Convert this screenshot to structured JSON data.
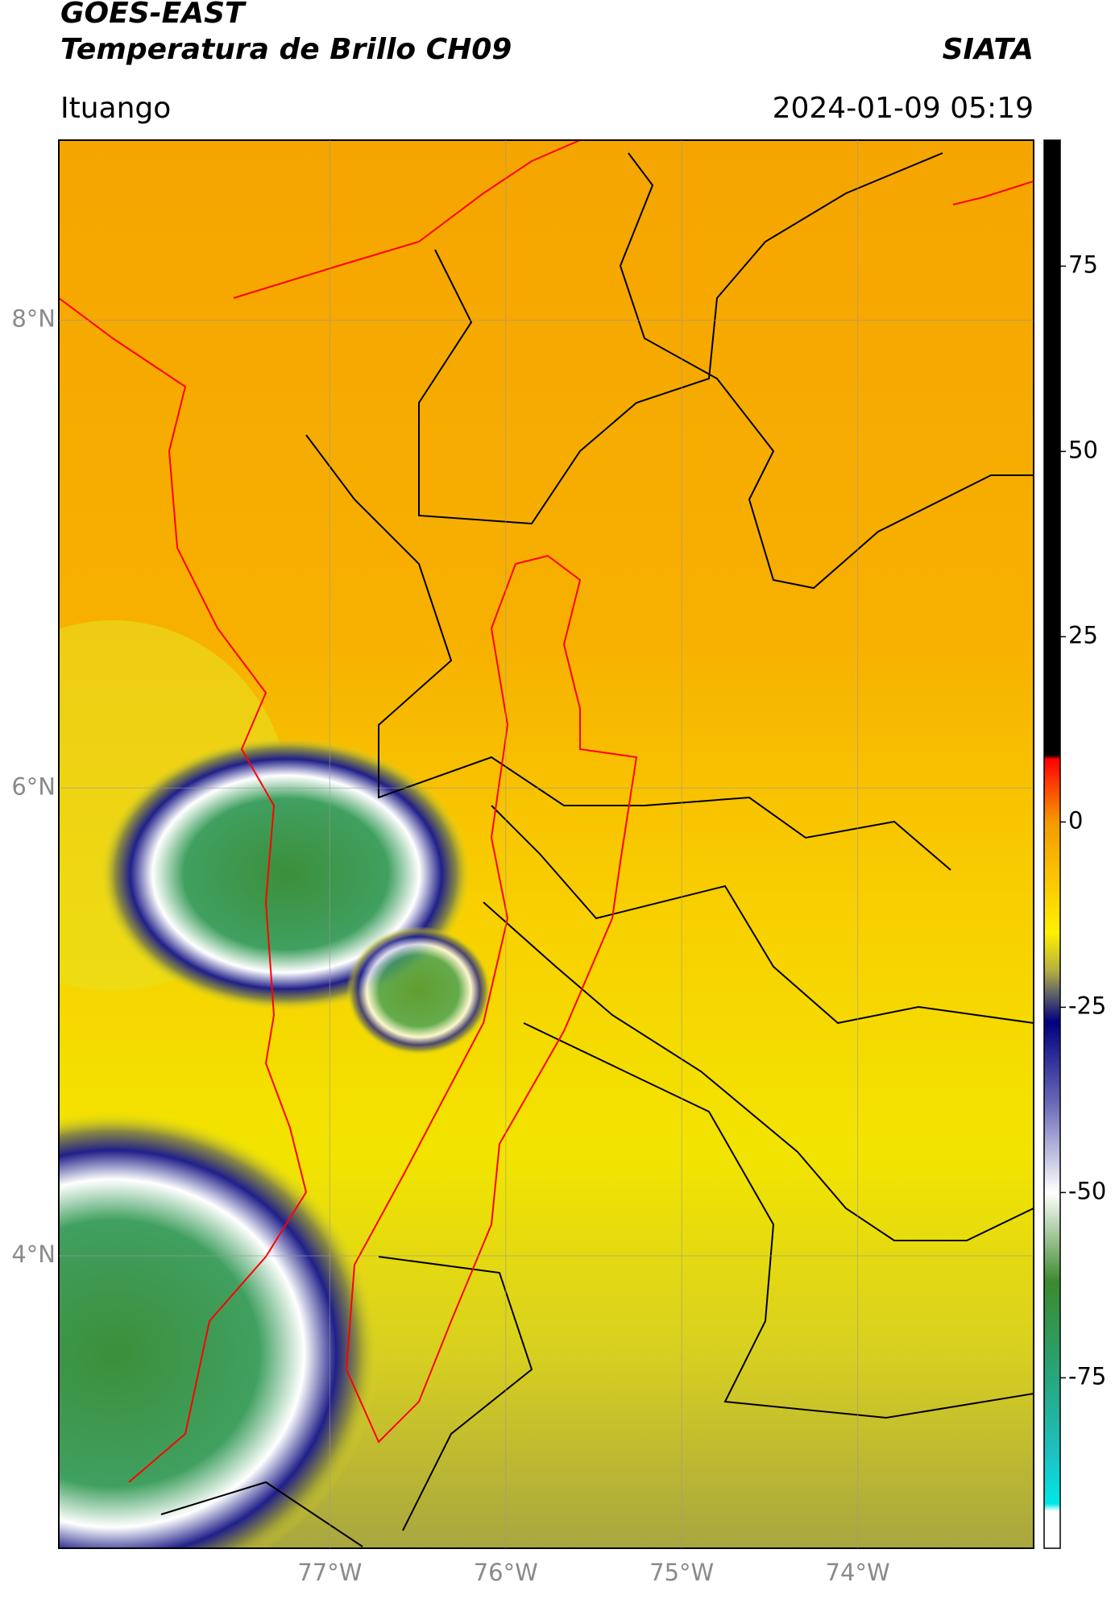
{
  "header": {
    "title": "GOES-EAST",
    "subtitle": "Temperatura de Brillo CH09",
    "source": "SIATA",
    "location": "Ituango",
    "datetime": "2024-01-09 05:19"
  },
  "map": {
    "lonlim": [
      -78.54,
      -73.0
    ],
    "latlim": [
      2.75,
      8.77
    ],
    "lat_ticks": [
      {
        "value": 8,
        "label": "8°N"
      },
      {
        "value": 6,
        "label": "6°N"
      },
      {
        "value": 4,
        "label": "4°N"
      }
    ],
    "lon_ticks": [
      {
        "value": -77,
        "label": "77°W"
      },
      {
        "value": -76,
        "label": "76°W"
      },
      {
        "value": -75,
        "label": "75°W"
      },
      {
        "value": -74,
        "label": "74°W"
      }
    ],
    "grid": true
  },
  "colorbar": {
    "lim": [
      -98,
      92
    ],
    "ticks": [
      75,
      50,
      25,
      0,
      -25,
      -50,
      -75
    ],
    "colormap": [
      {
        "value": 92,
        "color": "#000000"
      },
      {
        "value": 9,
        "color": "#000000"
      },
      {
        "value": 8.5,
        "color": "#ff0000"
      },
      {
        "value": 0,
        "color": "#f59a00"
      },
      {
        "value": -15,
        "color": "#fff000"
      },
      {
        "value": -20,
        "color": "#b5b040"
      },
      {
        "value": -23,
        "color": "#666666"
      },
      {
        "value": -27,
        "color": "#000080"
      },
      {
        "value": -38,
        "color": "#6a6ab8"
      },
      {
        "value": -50,
        "color": "#ffffff"
      },
      {
        "value": -62,
        "color": "#3d8a2e"
      },
      {
        "value": -72,
        "color": "#2a9f6a"
      },
      {
        "value": -85,
        "color": "#1ec0c0"
      },
      {
        "value": -92,
        "color": "#00e8e8"
      },
      {
        "value": -93,
        "color": "#ffffff"
      },
      {
        "value": -98,
        "color": "#ffffff"
      }
    ]
  }
}
